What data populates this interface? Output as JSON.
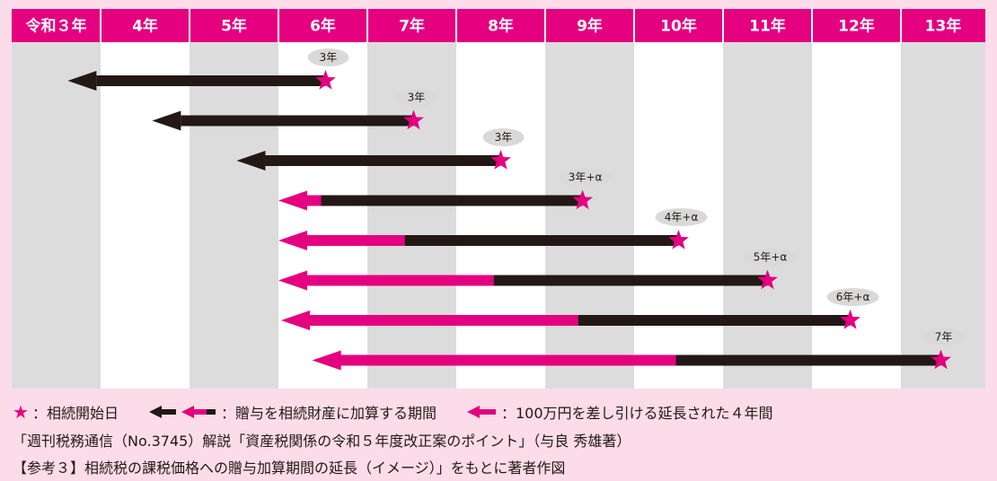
{
  "colors": {
    "pink": "#e4007f",
    "black": "#231815",
    "gray": "#dcdcdd",
    "white": "#ffffff",
    "bg": "#fbdce8",
    "label_oval": "#d9d9d9"
  },
  "columns": [
    "令和３年",
    "4年",
    "5年",
    "6年",
    "7年",
    "8年",
    "9年",
    "10年",
    "11年",
    "12年",
    "13年"
  ],
  "rows": [
    {
      "label": "3年",
      "start_col": 0.63,
      "pink_end_col": null,
      "star_col": 3.53
    },
    {
      "label": "3年",
      "start_col": 1.58,
      "pink_end_col": null,
      "star_col": 4.52
    },
    {
      "label": "3年",
      "start_col": 2.53,
      "pink_end_col": null,
      "star_col": 5.5
    },
    {
      "label": "3年+α",
      "start_col": 3.0,
      "pink_end_col": 3.48,
      "star_col": 6.42
    },
    {
      "label": "4年+α",
      "start_col": 3.0,
      "pink_end_col": 4.42,
      "star_col": 7.5
    },
    {
      "label": "5年+α",
      "start_col": 3.0,
      "pink_end_col": 5.42,
      "star_col": 8.5
    },
    {
      "label": "6年+α",
      "start_col": 3.03,
      "pink_end_col": 6.37,
      "star_col": 9.43
    },
    {
      "label": "7年",
      "start_col": 3.38,
      "pink_end_col": 7.47,
      "star_col": 10.45
    }
  ],
  "legend": {
    "star_symbol": "★",
    "start_label": "：相続開始日",
    "gift_label": "：贈与を相続財産に加算する期間",
    "extension_label": "：100万円を差し引ける延長された４年間"
  },
  "source": "「週刊税務通信（No.3745）解説「資産税関係の令和５年度改正案のポイント」（与良 秀雄著）",
  "figure_caption": "【参考３】相続税の課税価格への贈与加算期間の延長（イメージ）」をもとに著者作図"
}
